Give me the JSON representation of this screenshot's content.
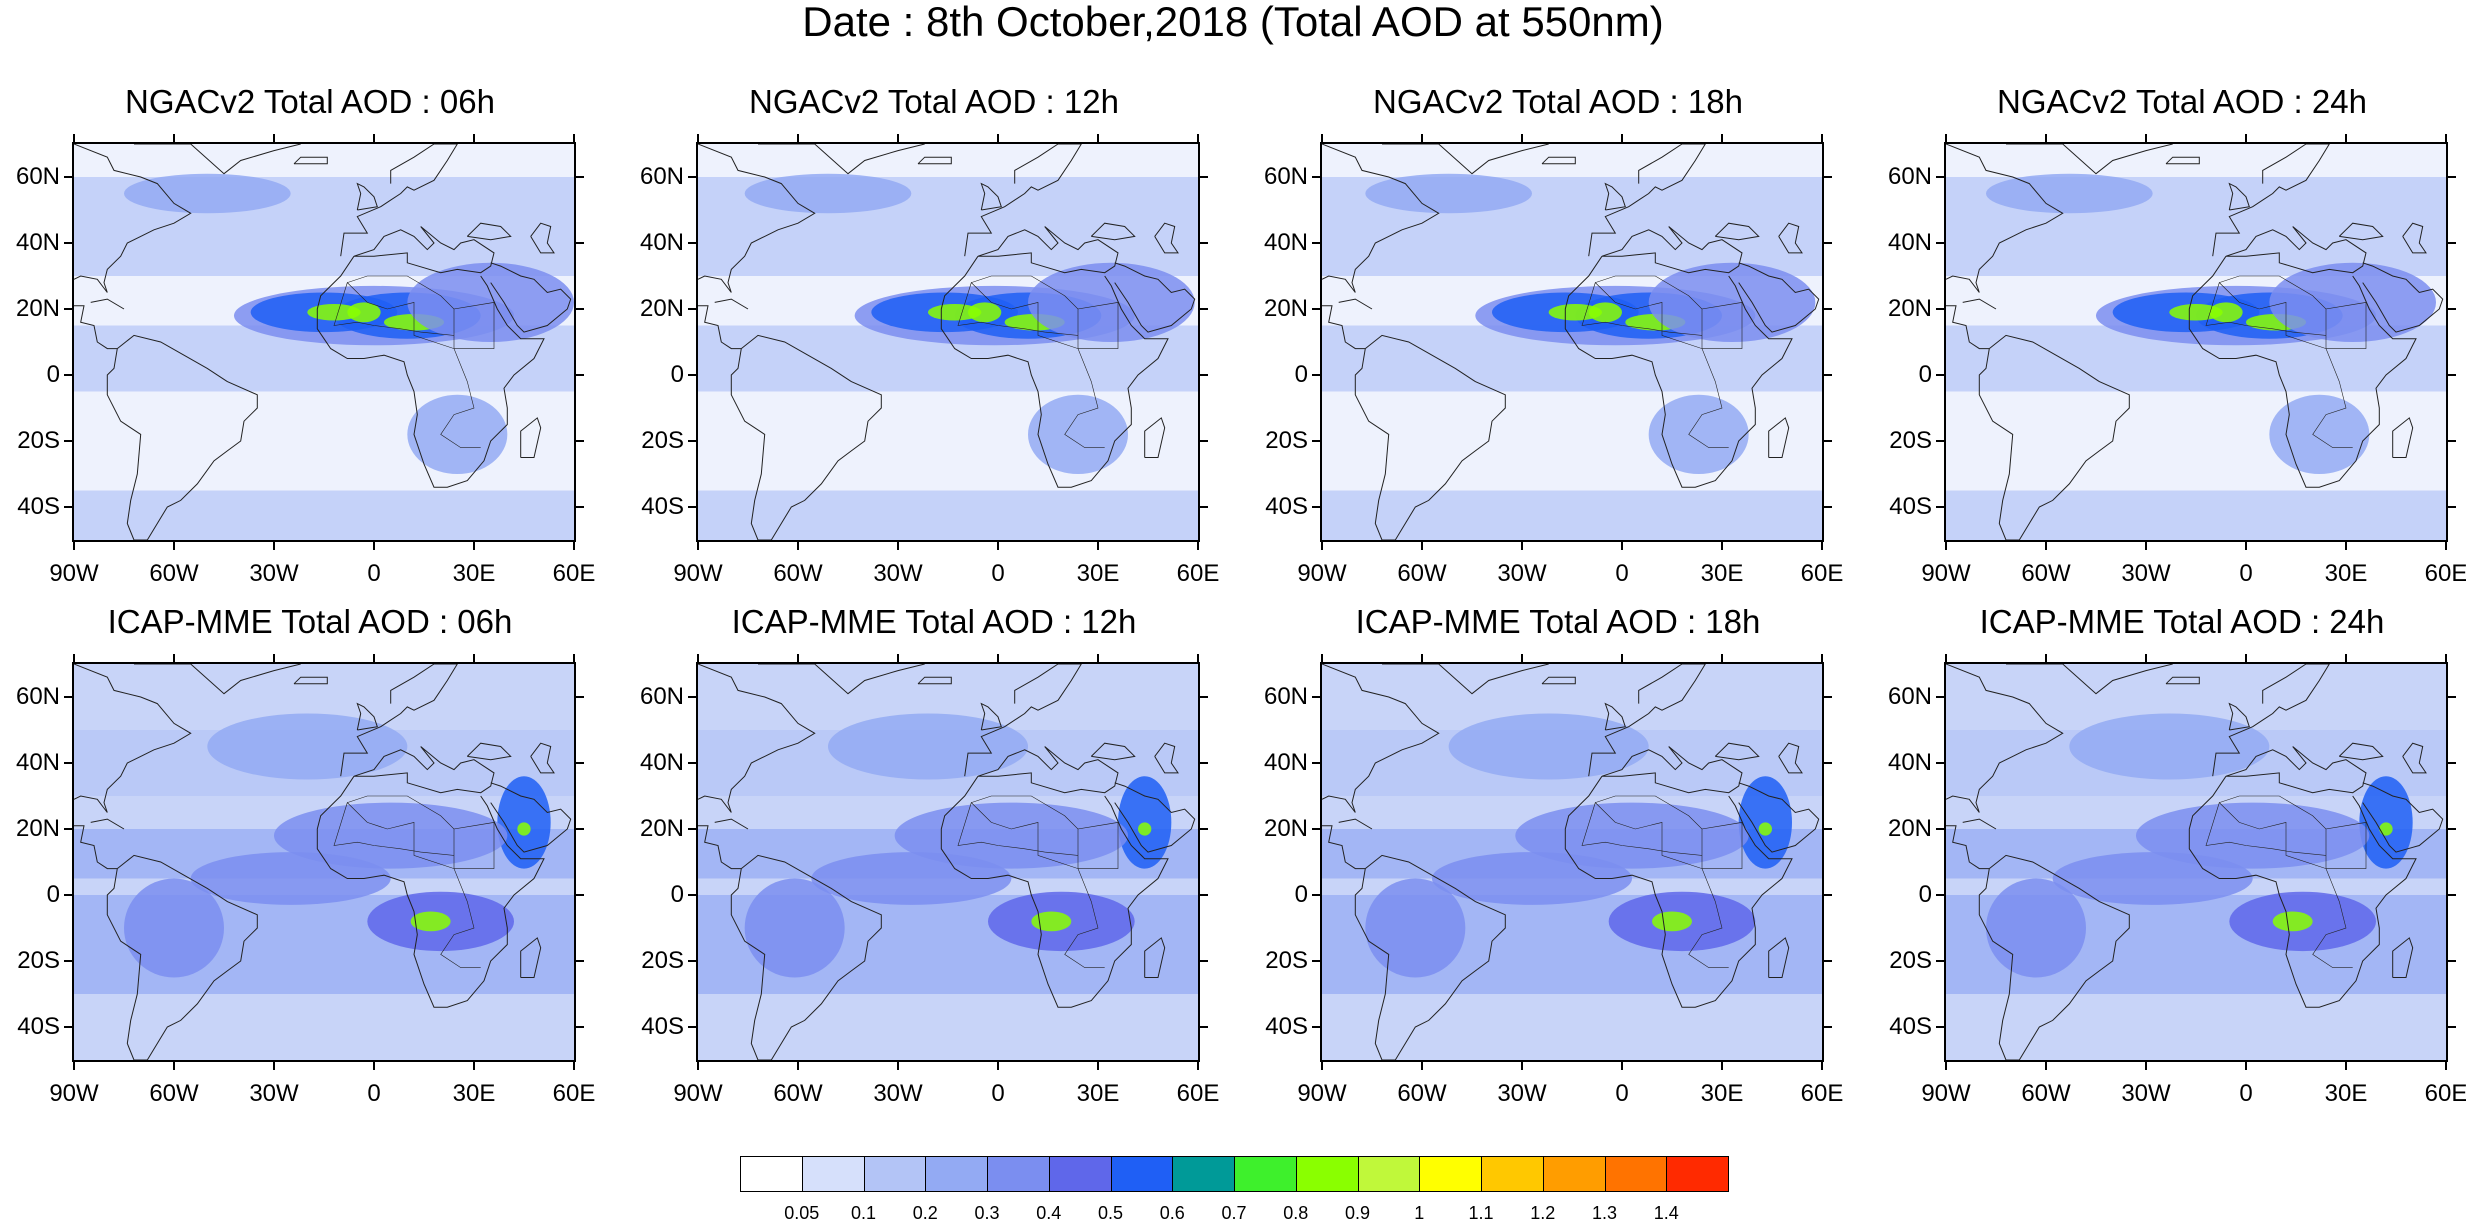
{
  "title": "Date : 8th October,2018 (Total AOD at 550nm)",
  "lat_labels": [
    "60N",
    "40N",
    "20N",
    "0",
    "20S",
    "40S"
  ],
  "lon_labels": [
    "90W",
    "60W",
    "30W",
    "0",
    "30E",
    "60E"
  ],
  "lat_values": [
    60,
    40,
    20,
    0,
    -20,
    -40
  ],
  "lon_values": [
    -90,
    -60,
    -30,
    0,
    30,
    60
  ],
  "map_extent": {
    "lon": [
      -90,
      60
    ],
    "lat": [
      -50,
      70
    ]
  },
  "panels": [
    {
      "id": "ngac-06",
      "title": "NGACv2 Total AOD : 06h",
      "model": "NGACv2",
      "hour": "06h"
    },
    {
      "id": "ngac-12",
      "title": "NGACv2 Total AOD : 12h",
      "model": "NGACv2",
      "hour": "12h"
    },
    {
      "id": "ngac-18",
      "title": "NGACv2 Total AOD : 18h",
      "model": "NGACv2",
      "hour": "18h"
    },
    {
      "id": "ngac-24",
      "title": "NGACv2 Total AOD : 24h",
      "model": "NGACv2",
      "hour": "24h"
    },
    {
      "id": "icap-06",
      "title": "ICAP-MME Total AOD : 06h",
      "model": "ICAP-MME",
      "hour": "06h"
    },
    {
      "id": "icap-12",
      "title": "ICAP-MME Total AOD : 12h",
      "model": "ICAP-MME",
      "hour": "12h"
    },
    {
      "id": "icap-18",
      "title": "ICAP-MME Total AOD : 18h",
      "model": "ICAP-MME",
      "hour": "18h"
    },
    {
      "id": "icap-24",
      "title": "ICAP-MME Total AOD : 24h",
      "model": "ICAP-MME",
      "hour": "24h"
    }
  ],
  "colorbar": {
    "labels": [
      "0.05",
      "0.1",
      "0.2",
      "0.3",
      "0.4",
      "0.5",
      "0.6",
      "0.7",
      "0.8",
      "0.9",
      "1",
      "1.1",
      "1.2",
      "1.3",
      "1.4"
    ],
    "colors": [
      "#ffffff",
      "#d6e0fb",
      "#b3c4f6",
      "#93aaf3",
      "#7b8ef0",
      "#5f67ea",
      "#1f5ff5",
      "#009a98",
      "#3ef02c",
      "#8aff00",
      "#c0f83a",
      "#ffff00",
      "#ffc800",
      "#ff9d00",
      "#ff7300",
      "#ff2a00"
    ]
  },
  "plumes": {
    "ngac": [
      {
        "lon": 0,
        "lat": 18,
        "level": 0.35,
        "rx": 42,
        "ry": 9
      },
      {
        "lon": -15,
        "lat": 19,
        "level": 0.5,
        "rx": 22,
        "ry": 6
      },
      {
        "lon": 10,
        "lat": 18,
        "level": 0.55,
        "rx": 22,
        "ry": 7
      },
      {
        "lon": -12,
        "lat": 19,
        "level": 0.8,
        "rx": 8,
        "ry": 2.5
      },
      {
        "lon": -3,
        "lat": 19,
        "level": 0.8,
        "rx": 5,
        "ry": 3
      },
      {
        "lon": 12,
        "lat": 16,
        "level": 0.8,
        "rx": 9,
        "ry": 2.5
      },
      {
        "lon": 35,
        "lat": 22,
        "level": 0.3,
        "rx": 25,
        "ry": 12
      },
      {
        "lon": -50,
        "lat": 55,
        "level": 0.2,
        "rx": 25,
        "ry": 6
      },
      {
        "lon": 25,
        "lat": -18,
        "level": 0.2,
        "rx": 15,
        "ry": 12
      }
    ],
    "icap": [
      {
        "lon": 20,
        "lat": -8,
        "level": 0.45,
        "rx": 22,
        "ry": 9
      },
      {
        "lon": 17,
        "lat": -8,
        "level": 0.8,
        "rx": 6,
        "ry": 3
      },
      {
        "lon": 45,
        "lat": 22,
        "level": 0.5,
        "rx": 8,
        "ry": 14
      },
      {
        "lon": 5,
        "lat": 18,
        "level": 0.35,
        "rx": 35,
        "ry": 10
      },
      {
        "lon": -60,
        "lat": -10,
        "level": 0.3,
        "rx": 15,
        "ry": 15
      },
      {
        "lon": 45,
        "lat": 20,
        "level": 0.8,
        "rx": 2,
        "ry": 2
      },
      {
        "lon": -25,
        "lat": 5,
        "level": 0.3,
        "rx": 30,
        "ry": 8
      },
      {
        "lon": -20,
        "lat": 45,
        "level": 0.25,
        "rx": 30,
        "ry": 10
      }
    ]
  }
}
